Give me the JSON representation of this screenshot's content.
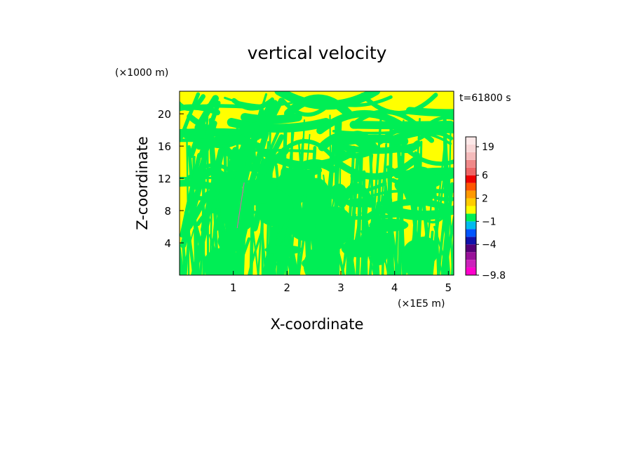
{
  "chart_data": {
    "type": "heatmap",
    "title": "vertical velocity",
    "xlabel": "X-coordinate",
    "ylabel": "Z-coordinate",
    "x_multiplier_label": "(×1E5 m)",
    "y_multiplier_label": "(×1000 m)",
    "time_label": "t=61800 s",
    "xlim": [
      0,
      5.1
    ],
    "ylim": [
      0,
      22.8
    ],
    "x_ticks": [
      1,
      2,
      3,
      4,
      5
    ],
    "x_tick_labels": [
      "1",
      "2",
      "3",
      "4",
      "5"
    ],
    "y_ticks": [
      4,
      8,
      12,
      16,
      20
    ],
    "y_tick_labels": [
      "4",
      "8",
      "12",
      "16",
      "20"
    ],
    "field_description": "alternating bands of weak updraft (yellow) and weak downdraft (green)",
    "field_colors": {
      "positive": "#ffff00",
      "negative": "#00ee55",
      "stripe": "#e060b0"
    },
    "colorbar": {
      "bands": [
        {
          "lo": -9.8,
          "hi": -8.0,
          "color": "#ff00cc"
        },
        {
          "lo": -8.0,
          "hi": -6.5,
          "color": "#cc22bb"
        },
        {
          "lo": -6.5,
          "hi": -5.0,
          "color": "#991199"
        },
        {
          "lo": -5.0,
          "hi": -4.0,
          "color": "#550077"
        },
        {
          "lo": -4.0,
          "hi": -3.0,
          "color": "#1111aa"
        },
        {
          "lo": -3.0,
          "hi": -2.0,
          "color": "#0055ff"
        },
        {
          "lo": -2.0,
          "hi": -1.0,
          "color": "#00bbee"
        },
        {
          "lo": -1.0,
          "hi": 0.0,
          "color": "#00ee55"
        },
        {
          "lo": 0.0,
          "hi": 1.0,
          "color": "#ffff00"
        },
        {
          "lo": 1.0,
          "hi": 2.0,
          "color": "#ffcc00"
        },
        {
          "lo": 2.0,
          "hi": 3.0,
          "color": "#ff9900"
        },
        {
          "lo": 3.0,
          "hi": 4.5,
          "color": "#ff5500"
        },
        {
          "lo": 4.5,
          "hi": 6.0,
          "color": "#ee0000"
        },
        {
          "lo": 6.0,
          "hi": 9.5,
          "color": "#ee6666"
        },
        {
          "lo": 9.5,
          "hi": 13.0,
          "color": "#f08888"
        },
        {
          "lo": 13.0,
          "hi": 16.5,
          "color": "#f4bbbb"
        },
        {
          "lo": 16.5,
          "hi": 20.0,
          "color": "#f8d6d6"
        },
        {
          "lo": 20.0,
          "hi": 24.0,
          "color": "#fde8e8"
        }
      ],
      "labels": [
        {
          "value": 19,
          "text": "19"
        },
        {
          "value": 6,
          "text": "6"
        },
        {
          "value": 2,
          "text": "2"
        },
        {
          "value": -1,
          "text": "−1"
        },
        {
          "value": -4,
          "text": "−4"
        },
        {
          "value": -9.8,
          "text": "−9.8"
        }
      ]
    }
  }
}
